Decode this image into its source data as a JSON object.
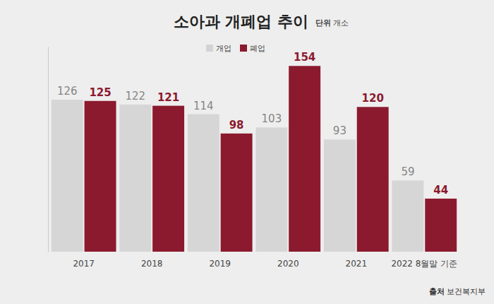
{
  "chart_data": {
    "type": "bar",
    "title": "소아과 개폐업 추이",
    "annotations": [
      "단위 개소",
      "출처 보건복지부"
    ],
    "categories": [
      "2017",
      "2018",
      "2019",
      "2020",
      "2021",
      "2022 8월말 기준"
    ],
    "series": [
      {
        "name": "개업",
        "color": "#d3d3d3",
        "values": [
          126,
          122,
          114,
          103,
          93,
          59
        ]
      },
      {
        "name": "폐업",
        "color": "#8b1a2e",
        "values": [
          125,
          121,
          98,
          154,
          120,
          44
        ]
      }
    ],
    "ylim": [
      0,
      170
    ],
    "tick_labels": "x",
    "data_labels": true,
    "legend": "top",
    "grid": false
  }
}
